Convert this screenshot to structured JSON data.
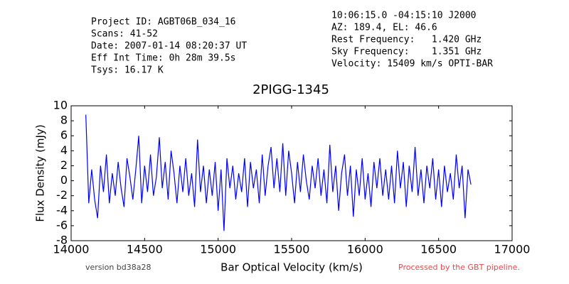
{
  "chart_data": {
    "type": "line",
    "title": "2PIGG-1345",
    "info_left": [
      "Project ID: AGBT06B_034_16",
      "Scans: 41-52",
      "Date: 2007-01-14 08:20:37 UT",
      "Eff Int Time: 0h 28m 39.5s",
      "Tsys: 16.17 K"
    ],
    "info_right": [
      "10:06:15.0 -04:15:10 J2000",
      "AZ: 189.4, EL: 46.6",
      "Rest Frequency:   1.420 GHz",
      "Sky Frequency:    1.351 GHz",
      "Velocity: 15409 km/s OPTI-BAR"
    ],
    "footer_left": "version bd38a28",
    "footer_right": "Processed by the GBT pipeline.",
    "x_label": "Bar Optical Velocity (km/s)",
    "y_label": "Flux Density (mJy)",
    "xlim": [
      14000,
      17000
    ],
    "xticks": [
      14000,
      14500,
      15000,
      15500,
      16000,
      16500,
      17000
    ],
    "ylim": [
      -8,
      10
    ],
    "yticks": [
      -8,
      -6,
      -4,
      -2,
      0,
      2,
      4,
      6,
      8,
      10
    ],
    "x": [
      14100,
      14120,
      14140,
      14160,
      14180,
      14200,
      14220,
      14240,
      14260,
      14280,
      14300,
      14320,
      14340,
      14360,
      14380,
      14400,
      14420,
      14440,
      14460,
      14480,
      14500,
      14520,
      14540,
      14560,
      14580,
      14600,
      14620,
      14640,
      14660,
      14680,
      14700,
      14720,
      14740,
      14760,
      14780,
      14800,
      14820,
      14840,
      14860,
      14880,
      14900,
      14920,
      14940,
      14960,
      14980,
      15000,
      15020,
      15040,
      15060,
      15080,
      15100,
      15120,
      15140,
      15160,
      15180,
      15200,
      15220,
      15240,
      15260,
      15280,
      15300,
      15320,
      15340,
      15360,
      15380,
      15400,
      15420,
      15440,
      15460,
      15480,
      15500,
      15520,
      15540,
      15560,
      15580,
      15600,
      15620,
      15640,
      15660,
      15680,
      15700,
      15720,
      15740,
      15760,
      15780,
      15800,
      15820,
      15840,
      15860,
      15880,
      15900,
      15920,
      15940,
      15960,
      15980,
      16000,
      16020,
      16040,
      16060,
      16080,
      16100,
      16120,
      16140,
      16160,
      16180,
      16200,
      16220,
      16240,
      16260,
      16280,
      16300,
      16320,
      16340,
      16360,
      16380,
      16400,
      16420,
      16440,
      16460,
      16480,
      16500,
      16520,
      16540,
      16560,
      16580,
      16600,
      16620,
      16640,
      16660,
      16680,
      16700,
      16720
    ],
    "series": [
      {
        "name": "flux",
        "color": "#0000ff",
        "values": [
          8.8,
          -3.0,
          1.5,
          -2.5,
          -5.0,
          2.0,
          -1.5,
          3.5,
          -3.0,
          1.0,
          -2.0,
          2.5,
          -1.0,
          -3.5,
          3.0,
          0.5,
          -2.5,
          1.5,
          6.0,
          -3.0,
          2.0,
          -1.5,
          3.5,
          -2.0,
          0.5,
          5.8,
          -1.0,
          2.5,
          -2.5,
          4.0,
          1.0,
          -3.0,
          2.0,
          -1.5,
          3.0,
          -2.0,
          1.0,
          -3.5,
          5.5,
          -1.5,
          2.0,
          -3.0,
          1.5,
          -2.0,
          2.5,
          -4.0,
          1.5,
          -6.7,
          3.0,
          -1.0,
          2.0,
          -2.5,
          1.0,
          -1.5,
          3.0,
          -3.5,
          2.5,
          -1.0,
          1.5,
          -3.0,
          3.5,
          -2.0,
          2.0,
          4.5,
          -1.0,
          3.0,
          -1.5,
          5.0,
          -2.0,
          4.0,
          1.0,
          -3.0,
          2.5,
          -1.5,
          3.5,
          0.0,
          -2.5,
          2.0,
          -1.0,
          3.0,
          -2.0,
          1.5,
          -3.0,
          4.8,
          -1.5,
          2.0,
          -4.0,
          1.0,
          3.5,
          -2.0,
          2.0,
          -4.8,
          1.5,
          -2.0,
          3.0,
          -2.5,
          1.0,
          -3.5,
          2.5,
          -1.0,
          3.0,
          -2.0,
          1.5,
          -2.5,
          2.0,
          -3.0,
          4.0,
          -1.0,
          2.5,
          -3.5,
          2.0,
          -1.5,
          4.5,
          -2.0,
          1.5,
          -3.0,
          2.0,
          -1.0,
          3.0,
          -2.5,
          1.5,
          -3.5,
          2.0,
          -1.5,
          1.0,
          -2.5,
          3.5,
          -1.0,
          2.0,
          -5.0,
          1.5,
          -0.5
        ]
      }
    ]
  }
}
